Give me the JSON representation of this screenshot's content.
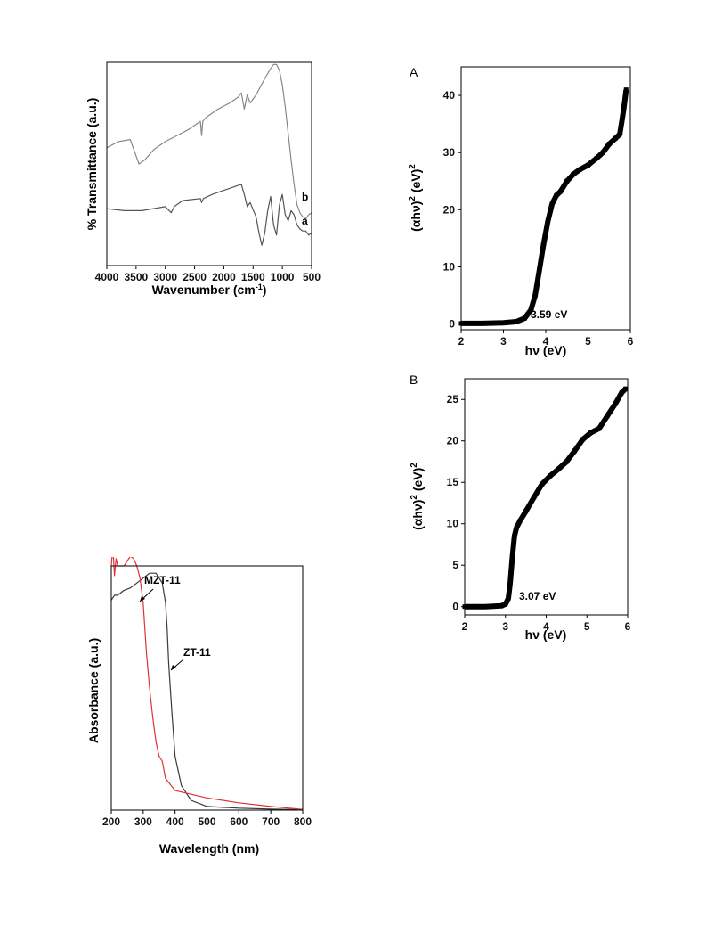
{
  "chart_data": [
    {
      "id": "ftir",
      "type": "line",
      "xlabel": "Wavenumber (cm",
      "xlabel_sup": "-1",
      "xlabel_tail": ")",
      "ylabel": "% Transmittance (a.u.)",
      "xlim": [
        4000,
        500
      ],
      "ylim": [
        0,
        100
      ],
      "x_ticks": [
        4000,
        3500,
        3000,
        2500,
        2000,
        1500,
        1000,
        500
      ],
      "y_ticks": [],
      "grid": false,
      "series": [
        {
          "name": "b",
          "color": "#888888",
          "x": [
            4000,
            3800,
            3600,
            3450,
            3350,
            3200,
            3000,
            2800,
            2600,
            2400,
            2380,
            2360,
            2300,
            2100,
            1900,
            1750,
            1700,
            1650,
            1600,
            1550,
            1450,
            1300,
            1200,
            1150,
            1100,
            1050,
            1000,
            950,
            900,
            850,
            800,
            750,
            700,
            650,
            600,
            550,
            500
          ],
          "y": [
            58,
            61,
            62,
            50,
            52,
            57,
            61,
            64,
            67,
            71,
            64,
            71,
            73,
            77,
            80,
            83,
            85,
            77,
            84,
            80,
            84,
            92,
            97,
            99,
            99,
            96,
            89,
            78,
            65,
            52,
            40,
            30,
            26,
            24,
            23,
            25,
            26
          ]
        },
        {
          "name": "a",
          "color": "#555555",
          "x": [
            4000,
            3700,
            3400,
            3000,
            2900,
            2850,
            2700,
            2400,
            2380,
            2350,
            2200,
            2000,
            1800,
            1700,
            1650,
            1600,
            1550,
            1450,
            1400,
            1350,
            1300,
            1250,
            1200,
            1150,
            1100,
            1050,
            1000,
            950,
            900,
            850,
            800,
            750,
            700,
            650,
            600,
            550,
            500
          ],
          "y": [
            28,
            27,
            27,
            29,
            26,
            29,
            32,
            33,
            31,
            33,
            35,
            37,
            39,
            40,
            35,
            29,
            31,
            24,
            16,
            10,
            16,
            27,
            34,
            20,
            15,
            30,
            35,
            25,
            22,
            27,
            25,
            20,
            18,
            17,
            17,
            15,
            16
          ]
        }
      ],
      "labels": {
        "b": "b",
        "a": "a"
      }
    },
    {
      "id": "tauc_A",
      "type": "scatter",
      "panel_letter": "A",
      "xlabel": "hν (eV)",
      "ylabel": "(αhν)",
      "ylabel_sup": "2",
      "ylabel_tail": " (eV)",
      "ylabel_tail_sup": "2",
      "xlim": [
        2,
        6
      ],
      "ylim": [
        -1,
        45
      ],
      "x_ticks": [
        2,
        3,
        4,
        5,
        6
      ],
      "y_ticks": [
        0,
        10,
        20,
        30,
        40
      ],
      "grid": false,
      "annotation": "3.59 eV",
      "series": [
        {
          "color": "#000000",
          "x": [
            2.0,
            2.5,
            3.0,
            3.3,
            3.5,
            3.65,
            3.75,
            3.85,
            3.95,
            4.05,
            4.15,
            4.25,
            4.35,
            4.5,
            4.65,
            4.8,
            5.0,
            5.2,
            5.35,
            5.5,
            5.65,
            5.75,
            5.8,
            5.85,
            5.9
          ],
          "y": [
            0.1,
            0.1,
            0.2,
            0.4,
            1.0,
            2.5,
            5.0,
            9.5,
            14.0,
            18.0,
            21.0,
            22.5,
            23.2,
            25.0,
            26.2,
            27.0,
            27.8,
            29.0,
            30.0,
            31.5,
            32.5,
            33.2,
            35.5,
            38.0,
            41.0
          ]
        }
      ]
    },
    {
      "id": "tauc_B",
      "type": "scatter",
      "panel_letter": "B",
      "xlabel": "hν (eV)",
      "ylabel": "(αhν)",
      "ylabel_sup": "2",
      "ylabel_tail": " (eV)",
      "ylabel_tail_sup": "2",
      "xlim": [
        2,
        6
      ],
      "ylim": [
        -1,
        27.5
      ],
      "x_ticks": [
        2,
        3,
        4,
        5,
        6
      ],
      "y_ticks": [
        0,
        5,
        10,
        15,
        20,
        25
      ],
      "grid": false,
      "annotation": "3.07 eV",
      "series": [
        {
          "color": "#000000",
          "x": [
            2.0,
            2.5,
            2.9,
            3.0,
            3.07,
            3.12,
            3.17,
            3.22,
            3.27,
            3.35,
            3.5,
            3.7,
            3.9,
            4.1,
            4.3,
            4.5,
            4.7,
            4.9,
            5.1,
            5.3,
            5.5,
            5.7,
            5.85,
            5.95
          ],
          "y": [
            0.0,
            0.0,
            0.1,
            0.3,
            1.0,
            3.0,
            6.0,
            8.5,
            9.5,
            10.3,
            11.5,
            13.2,
            14.8,
            15.8,
            16.6,
            17.5,
            18.8,
            20.2,
            21.0,
            21.5,
            23.0,
            24.5,
            25.8,
            26.3
          ]
        }
      ]
    },
    {
      "id": "uvvis",
      "type": "line",
      "xlabel": "Wavelength (nm)",
      "ylabel": "Absorbance (a.u.)",
      "xlim": [
        200,
        800
      ],
      "ylim": [
        0,
        100
      ],
      "x_ticks": [
        200,
        300,
        400,
        500,
        600,
        700,
        800
      ],
      "y_ticks": [],
      "grid": false,
      "series": [
        {
          "name": "ZT-11",
          "color": "#3a3a3a",
          "x": [
            200,
            210,
            220,
            240,
            260,
            280,
            300,
            320,
            340,
            360,
            370,
            375,
            380,
            390,
            400,
            420,
            450,
            500,
            600,
            700,
            800
          ],
          "y": [
            86,
            88,
            88,
            90,
            91,
            93,
            95,
            97,
            97,
            93,
            85,
            75,
            60,
            40,
            22,
            10,
            4,
            1.5,
            0.8,
            0.4,
            0.2
          ]
        },
        {
          "name": "MZT-11",
          "color": "#dd3333",
          "x": [
            200,
            205,
            210,
            215,
            220,
            240,
            260,
            270,
            280,
            290,
            300,
            305,
            310,
            320,
            330,
            340,
            350,
            360,
            370,
            400,
            450,
            500,
            600,
            700,
            800
          ],
          "y": [
            100,
            108,
            96,
            103,
            100,
            100,
            104,
            103,
            100,
            95,
            85,
            75,
            65,
            50,
            38,
            28,
            22,
            20,
            13,
            8,
            6.5,
            5,
            3,
            1.5,
            0.3
          ]
        }
      ],
      "labels": {
        "mzt": "MZT-11",
        "zt": "ZT-11"
      }
    }
  ]
}
